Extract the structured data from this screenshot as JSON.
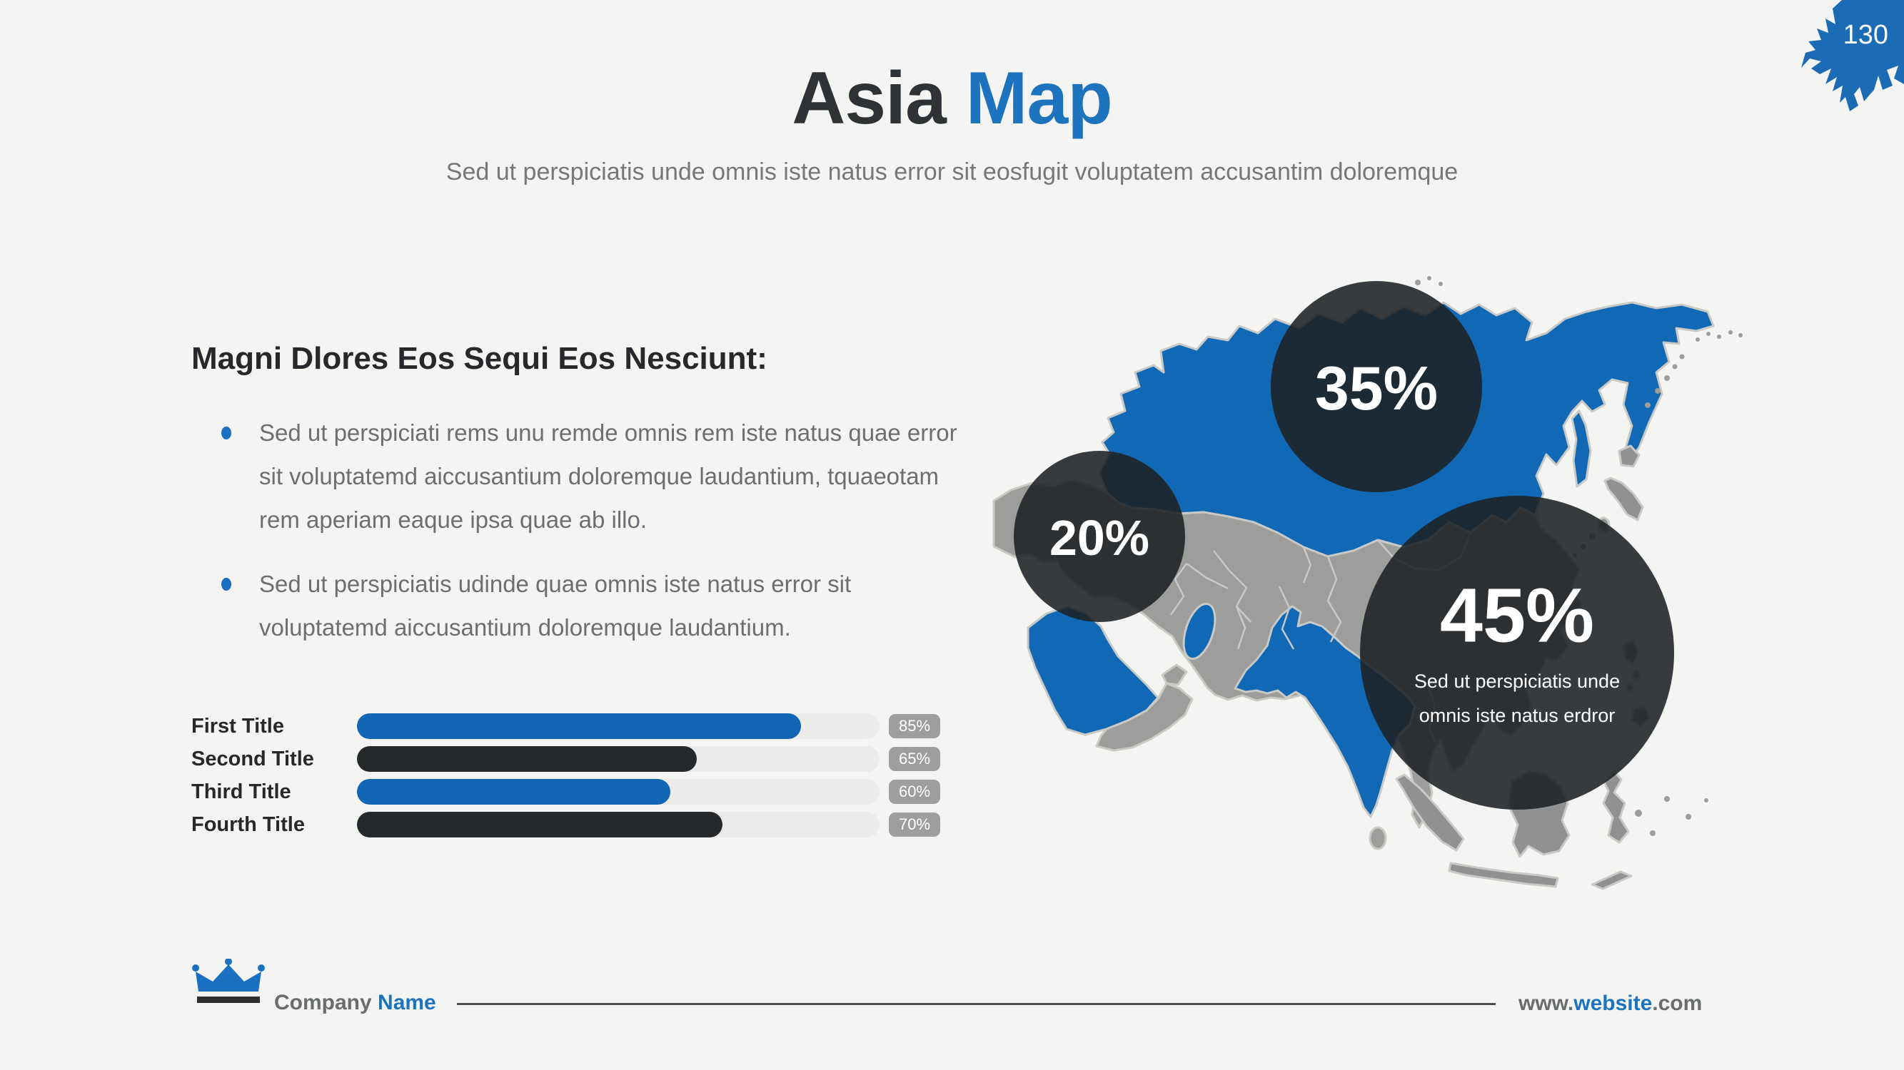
{
  "page": {
    "number": "130",
    "background_color": "#f4f4f2",
    "accent_color": "#1e73be",
    "dark_color": "#26292b"
  },
  "header": {
    "title_dark": "Asia",
    "title_accent": "Map",
    "subtitle": "Sed ut perspiciatis unde omnis iste natus error sit eosfugit voluptatem accusantim doloremque"
  },
  "content": {
    "heading": "Magni Dlores Eos Sequi Eos Nesciunt:",
    "bullets": [
      "Sed ut perspiciati rems unu remde omnis rem iste natus quae error sit voluptatemd aiccusantium doloremque laudantium, tquaeotam rem aperiam eaque ipsa quae ab illo.",
      "Sed ut perspiciatis udinde quae omnis iste natus error sit voluptatemd aiccusantium doloremque laudantium."
    ]
  },
  "chart_data": [
    {
      "type": "bar",
      "orientation": "horizontal",
      "categories": [
        "First Title",
        "Second Title",
        "Third Title",
        "Fourth Title"
      ],
      "values": [
        85,
        65,
        60,
        70
      ],
      "display_values": [
        "85%",
        "65%",
        "60%",
        "70%"
      ],
      "colors": [
        "#1266b4",
        "#26292b",
        "#1266b4",
        "#26292b"
      ],
      "track_color": "#ebebea",
      "value_badge_color": "#9c9ea0",
      "xlim": [
        0,
        100
      ],
      "title": "",
      "xlabel": "",
      "ylabel": ""
    },
    {
      "type": "bubble",
      "description": "Percentage bubbles over Asia map",
      "points": [
        {
          "label": "35%",
          "value": 35
        },
        {
          "label": "20%",
          "value": 20
        },
        {
          "label": "45%",
          "value": 45,
          "caption": "Sed ut perspiciatis unde omnis iste natus erdror"
        }
      ]
    }
  ],
  "map": {
    "highlight_color": "#1168b5",
    "land_color": "#9d9d9b",
    "island_color": "#8f9193",
    "border_color": "#c9c9c6",
    "bubble_color": "rgba(30,33,36,0.88)",
    "bubbles": {
      "b35": {
        "value": "35%"
      },
      "b20": {
        "value": "20%"
      },
      "b45": {
        "value": "45%",
        "caption_line1": "Sed ut perspiciatis unde",
        "caption_line2": "omnis iste natus erdror"
      }
    }
  },
  "footer": {
    "company_gray": "Company",
    "company_accent": "Name",
    "url_prefix": "www.",
    "url_accent": "website",
    "url_suffix": ".com"
  }
}
